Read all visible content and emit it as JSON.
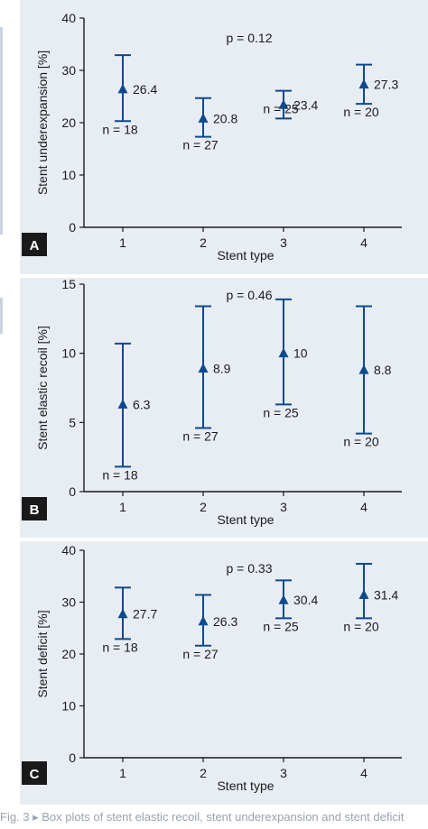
{
  "caption": "Fig. 3 ▸ Box plots of stent elastic recoil, stent underexpansion and stent deficit",
  "colors": {
    "marker": "#0d4a8c",
    "axis": "#1a1a1a",
    "panel_bg": "#e8edf4",
    "label_bg": "#1a1a1a"
  },
  "chart_data": [
    {
      "type": "scatter",
      "panel_label": "A",
      "annotation": "p = 0.12",
      "xlabel": "Stent type",
      "ylabel": "Stent underexpansion [%]",
      "categories": [
        "1",
        "2",
        "3",
        "4"
      ],
      "ylim": [
        0,
        40
      ],
      "yticks": [
        0,
        10,
        20,
        30,
        40
      ],
      "series": [
        {
          "values": [
            26.4,
            20.8,
            23.4,
            27.3
          ],
          "lower": [
            20.3,
            17.3,
            20.8,
            23.6
          ],
          "upper": [
            32.9,
            24.7,
            26.1,
            31.1
          ],
          "value_labels": [
            "26.4",
            "20.8",
            "23.4",
            "27.3"
          ],
          "n_labels": [
            "n = 18",
            "n = 27",
            "n = 25",
            "n = 20"
          ]
        }
      ]
    },
    {
      "type": "scatter",
      "panel_label": "B",
      "annotation": "p = 0.46",
      "xlabel": "Stent type",
      "ylabel": "Stent elastic recoil [%]",
      "categories": [
        "1",
        "2",
        "3",
        "4"
      ],
      "ylim": [
        0,
        15
      ],
      "yticks": [
        0,
        5,
        10,
        15
      ],
      "series": [
        {
          "values": [
            6.3,
            8.9,
            10,
            8.8
          ],
          "lower": [
            1.8,
            4.6,
            6.3,
            4.2
          ],
          "upper": [
            10.7,
            13.4,
            13.9,
            13.4
          ],
          "value_labels": [
            "6.3",
            "8.9",
            "10",
            "8.8"
          ],
          "n_labels": [
            "n = 18",
            "n = 27",
            "n = 25",
            "n = 20"
          ]
        }
      ]
    },
    {
      "type": "scatter",
      "panel_label": "C",
      "annotation": "p = 0.33",
      "xlabel": "Stent type",
      "ylabel": "Stent deficit [%]",
      "categories": [
        "1",
        "2",
        "3",
        "4"
      ],
      "ylim": [
        0,
        40
      ],
      "yticks": [
        0,
        10,
        20,
        30,
        40
      ],
      "series": [
        {
          "values": [
            27.7,
            26.3,
            30.4,
            31.4
          ],
          "lower": [
            22.9,
            21.6,
            26.9,
            26.9
          ],
          "upper": [
            32.8,
            31.4,
            34.2,
            37.4
          ],
          "value_labels": [
            "27.7",
            "26.3",
            "30.4",
            "31.4"
          ],
          "n_labels": [
            "n = 18",
            "n = 27",
            "n = 25",
            "n = 20"
          ]
        }
      ]
    }
  ]
}
